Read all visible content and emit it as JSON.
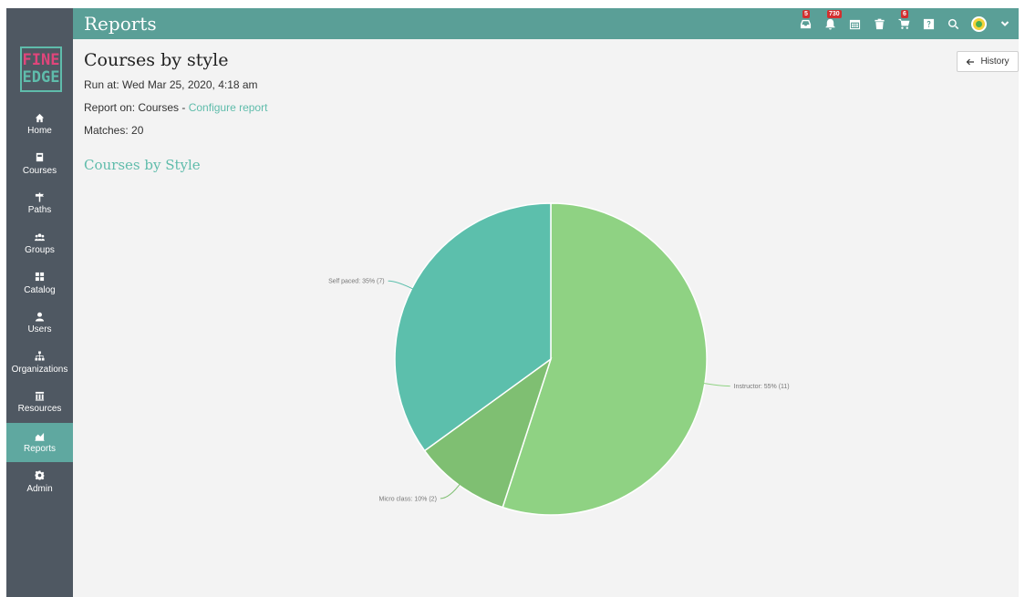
{
  "app": {
    "title": "Reports"
  },
  "topbar": {
    "badges": {
      "inbox": "5",
      "notifications": "730",
      "cart": "6"
    }
  },
  "sidebar": {
    "logo_line1": "FINE",
    "logo_line2": "EDGE",
    "items": [
      {
        "label": "Home",
        "icon": "home-icon"
      },
      {
        "label": "Courses",
        "icon": "book-icon"
      },
      {
        "label": "Paths",
        "icon": "signpost-icon"
      },
      {
        "label": "Groups",
        "icon": "groups-icon"
      },
      {
        "label": "Catalog",
        "icon": "grid-icon"
      },
      {
        "label": "Users",
        "icon": "user-icon"
      },
      {
        "label": "Organizations",
        "icon": "org-icon"
      },
      {
        "label": "Resources",
        "icon": "library-icon"
      },
      {
        "label": "Reports",
        "icon": "chart-icon",
        "active": true
      },
      {
        "label": "Admin",
        "icon": "gear-icon"
      }
    ]
  },
  "report": {
    "title": "Courses by style",
    "run_at": "Run at: Wed Mar 25, 2020, 4:18 am",
    "report_on_prefix": "Report on: Courses - ",
    "configure_link": "Configure report",
    "matches": "Matches: 20",
    "history_label": "History"
  },
  "chart_data": {
    "type": "pie",
    "title": "Courses by Style",
    "slices": [
      {
        "label": "Instructor: 55% (11)",
        "category": "Instructor",
        "value": 11,
        "percent": 55,
        "color": "#8fd283"
      },
      {
        "label": "Micro class: 10% (2)",
        "category": "Micro class",
        "value": 2,
        "percent": 10,
        "color": "#7fbf72"
      },
      {
        "label": "Self paced: 35% (7)",
        "category": "Self paced",
        "value": 7,
        "percent": 35,
        "color": "#5cbfac"
      }
    ]
  },
  "colors": {
    "sidebar_bg": "#4f5862",
    "topbar_bg": "#5a9f97",
    "accent": "#5fbcab",
    "active_nav": "#5fa8a0",
    "badge": "#d32f2f"
  }
}
